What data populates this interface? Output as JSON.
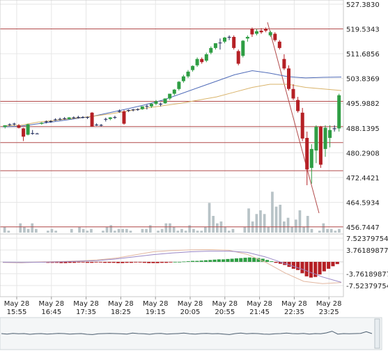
{
  "chart_data": {
    "type": "candlestick",
    "panels": {
      "price": {
        "y_ticks": [
          "527.3830",
          "519.5343",
          "511.6856",
          "503.8369",
          "495.9882",
          "488.1395",
          "480.2908",
          "472.4421",
          "464.5934",
          "456.7447"
        ],
        "ylim": [
          456.7447,
          527.383
        ],
        "horizontal_levels": [
          519.5343,
          496.6,
          488.6,
          483.5,
          474.6,
          456.8
        ],
        "candles": [
          [
            488.5,
            489.0,
            488.0,
            489.0
          ],
          [
            489.2,
            489.6,
            488.8,
            489.3
          ],
          [
            489.3,
            489.8,
            488.9,
            489.5
          ],
          [
            489.0,
            489.4,
            488.0,
            488.2
          ],
          [
            488.0,
            488.2,
            484.0,
            485.4
          ],
          [
            486.0,
            489.5,
            485.8,
            489.3
          ],
          [
            486.5,
            487.5,
            486.0,
            486.4
          ],
          [
            486.4,
            486.6,
            486.2,
            486.4
          ],
          [
            489.5,
            490.0,
            489.2,
            489.8
          ],
          [
            490.0,
            490.5,
            489.6,
            490.2
          ],
          [
            490.2,
            490.6,
            489.8,
            490.3
          ],
          [
            490.8,
            491.2,
            490.4,
            490.8
          ],
          [
            491.0,
            491.4,
            490.6,
            491.0
          ],
          [
            491.2,
            491.6,
            490.8,
            491.2
          ],
          [
            491.0,
            491.6,
            490.8,
            491.5
          ],
          [
            491.5,
            491.8,
            491.1,
            491.3
          ],
          [
            491.6,
            492.0,
            491.2,
            491.6
          ],
          [
            491.6,
            491.9,
            491.2,
            491.4
          ],
          [
            491.4,
            491.8,
            491.0,
            491.6
          ],
          [
            493.0,
            493.2,
            488.5,
            488.6
          ],
          [
            489.2,
            489.6,
            488.8,
            489.0
          ],
          [
            489.0,
            489.4,
            488.6,
            489.1
          ],
          [
            490.8,
            491.4,
            490.2,
            491.0
          ],
          [
            491.0,
            491.6,
            490.6,
            491.5
          ],
          [
            491.5,
            492.0,
            491.0,
            491.6
          ],
          [
            493.5,
            494.0,
            493.0,
            493.4
          ],
          [
            493.4,
            493.8,
            489.2,
            489.5
          ],
          [
            493.6,
            494.0,
            493.2,
            493.8
          ],
          [
            493.8,
            494.2,
            493.4,
            494.0
          ],
          [
            494.0,
            494.4,
            493.6,
            494.1
          ],
          [
            494.1,
            494.6,
            493.9,
            495.0
          ],
          [
            495.0,
            495.5,
            494.0,
            495.1
          ],
          [
            495.0,
            496.0,
            494.5,
            495.8
          ],
          [
            495.8,
            497.0,
            495.4,
            496.6
          ],
          [
            495.6,
            496.2,
            495.0,
            495.8
          ],
          [
            496.0,
            497.5,
            495.8,
            497.5
          ],
          [
            497.5,
            499.0,
            497.0,
            499.0
          ],
          [
            499.0,
            500.5,
            498.5,
            500.3
          ],
          [
            500.5,
            503.0,
            500.0,
            502.8
          ],
          [
            503.0,
            505.0,
            502.5,
            504.5
          ],
          [
            504.5,
            506.5,
            504.0,
            506.0
          ],
          [
            506.5,
            508.0,
            506.0,
            507.8
          ],
          [
            508.0,
            510.5,
            507.5,
            510.0
          ],
          [
            510.0,
            510.5,
            508.5,
            509.0
          ],
          [
            509.5,
            512.0,
            509.0,
            511.5
          ],
          [
            512.0,
            514.0,
            511.5,
            513.5
          ],
          [
            513.5,
            515.0,
            513.0,
            515.0
          ],
          [
            515.0,
            516.5,
            513.0,
            515.2
          ],
          [
            515.5,
            517.0,
            515.0,
            516.8
          ],
          [
            516.8,
            517.5,
            516.0,
            517.0
          ],
          [
            517.0,
            517.5,
            513.0,
            513.5
          ],
          [
            512.5,
            513.0,
            508.0,
            508.5
          ],
          [
            511.0,
            516.0,
            510.5,
            515.8
          ],
          [
            516.5,
            517.5,
            515.5,
            517.0
          ],
          [
            519.5,
            520.0,
            517.0,
            517.8
          ],
          [
            518.0,
            519.5,
            517.5,
            518.8
          ],
          [
            519.0,
            519.8,
            518.0,
            518.5
          ],
          [
            519.5,
            520.0,
            518.5,
            519.0
          ],
          [
            517.5,
            519.0,
            517.0,
            518.5
          ],
          [
            518.0,
            518.5,
            515.5,
            516.0
          ],
          [
            515.5,
            516.0,
            513.0,
            513.5
          ],
          [
            510.0,
            511.5,
            506.5,
            507.0
          ],
          [
            507.0,
            508.0,
            500.0,
            500.5
          ],
          [
            500.5,
            502.0,
            497.0,
            497.5
          ],
          [
            497.0,
            498.0,
            493.0,
            493.5
          ],
          [
            493.0,
            494.5,
            484.0,
            484.8
          ],
          [
            485.0,
            487.0,
            470.0,
            475.0
          ],
          [
            475.5,
            483.0,
            470.5,
            481.5
          ],
          [
            481.0,
            489.0,
            477.0,
            488.5
          ],
          [
            488.5,
            488.8,
            475.5,
            476.5
          ],
          [
            481.5,
            489.0,
            479.0,
            488.2
          ],
          [
            485.0,
            489.0,
            482.0,
            487.5
          ],
          [
            488.0,
            489.0,
            487.0,
            488.0
          ],
          [
            488.0,
            499.0,
            487.0,
            498.5
          ]
        ],
        "ma_fast": [
          [
            489.5,
            488.8
          ],
          [
            490.0,
            489.0
          ],
          [
            491.5,
            490.0
          ],
          [
            493.0,
            490.6
          ],
          [
            494.5,
            491.2
          ],
          [
            497.0,
            491.8
          ],
          [
            500.0,
            492.6
          ],
          [
            502.5,
            493.5
          ],
          [
            504.5,
            494.4
          ],
          [
            506.0,
            495.2
          ],
          [
            507.0,
            496.0
          ],
          [
            509.0,
            497.0
          ],
          [
            511.0,
            498.0
          ],
          [
            512.5,
            499.5
          ],
          [
            513.0,
            501.0
          ],
          [
            511.0,
            502.0
          ],
          [
            507.0,
            502.0
          ],
          [
            501.0,
            501.0
          ],
          [
            497.5,
            500.5
          ],
          [
            495.5,
            500.0
          ]
        ],
        "ma_slow": [
          [
            489.0,
            488.5
          ],
          [
            489.5,
            488.7
          ],
          [
            490.0,
            489.5
          ],
          [
            490.8,
            490.2
          ],
          [
            491.5,
            491.0
          ],
          [
            492.0,
            491.8
          ],
          [
            492.5,
            493.0
          ],
          [
            493.0,
            494.2
          ],
          [
            493.4,
            495.5
          ],
          [
            493.8,
            497.0
          ],
          [
            494.2,
            499.0
          ],
          [
            494.8,
            501.0
          ],
          [
            495.5,
            503.0
          ],
          [
            496.5,
            505.0
          ],
          [
            497.0,
            506.3
          ],
          [
            497.0,
            505.5
          ],
          [
            497.2,
            504.4
          ],
          [
            497.4,
            504.0
          ],
          [
            497.5,
            504.2
          ],
          [
            497.6,
            504.3
          ]
        ],
        "volume": [
          3,
          1,
          0,
          0,
          5,
          3,
          2,
          5,
          2,
          0,
          0,
          1,
          2,
          1,
          0,
          0,
          0,
          2,
          0,
          3,
          2,
          1,
          2,
          0,
          0,
          1,
          3,
          4,
          1,
          2,
          2,
          2,
          1,
          0,
          0,
          2,
          2,
          4,
          0,
          1,
          2,
          5,
          5,
          3,
          1,
          2,
          1,
          4,
          2,
          1,
          1,
          3,
          16,
          9,
          5,
          6,
          3,
          1,
          2,
          0,
          0,
          3,
          13,
          6,
          10,
          12,
          10,
          3,
          22,
          14,
          15,
          6,
          8,
          3,
          7,
          12,
          3,
          9,
          2,
          0,
          1,
          5,
          2,
          2,
          1,
          2
        ]
      },
      "macd": {
        "y_ticks": [
          "7.52379754",
          "3.76189877",
          "-3.76189877",
          "-7.52379754"
        ],
        "ylim": [
          -7.52379754,
          7.52379754
        ],
        "histogram": [
          -0.2,
          -0.3,
          -0.3,
          -0.3,
          -0.4,
          -0.4,
          -0.3,
          -0.3,
          -0.2,
          -0.2,
          -0.3,
          -0.3,
          -0.2,
          -0.2,
          -0.3,
          -0.3,
          -0.3,
          -0.4,
          -0.4,
          -0.3,
          -0.3,
          -0.2,
          -0.2,
          -0.3,
          -0.4,
          -0.4,
          -0.4,
          -0.3,
          -0.3,
          -0.2,
          0.0,
          0.0,
          0.1,
          0.2,
          0.3,
          0.3,
          0.4,
          0.5,
          0.6,
          0.7,
          0.8,
          0.8,
          0.9,
          1.0,
          1.1,
          1.2,
          1.3,
          1.4,
          1.3,
          1.2,
          1.0,
          0.6,
          0.2,
          -0.3,
          -0.6,
          -1.0,
          -1.6,
          -2.2,
          -2.6,
          -3.6,
          -4.6,
          -5.0,
          -4.8,
          -4.0,
          -3.0,
          -2.2,
          -1.4,
          -0.7
        ],
        "macd_line": [
          -0.2,
          -0.3,
          0.0,
          0.1,
          0.3,
          0.6,
          1.2,
          2.2,
          3.2,
          3.6,
          3.8,
          3.9,
          3.7,
          2.4,
          -0.2,
          -3.5,
          -6.2,
          -6.9,
          -6.6
        ],
        "signal_line": [
          -0.1,
          -0.2,
          -0.1,
          0.0,
          0.2,
          0.4,
          0.9,
          1.6,
          2.3,
          2.8,
          3.2,
          3.4,
          3.4,
          3.0,
          1.5,
          -0.5,
          -2.5,
          -4.8,
          -6.5
        ]
      }
    },
    "time_labels": [
      {
        "date": "May 28",
        "time": "15:55"
      },
      {
        "date": "May 28",
        "time": "16:45"
      },
      {
        "date": "May 28",
        "time": "17:35"
      },
      {
        "date": "May 28",
        "time": "18:25"
      },
      {
        "date": "May 28",
        "time": "19:15"
      },
      {
        "date": "May 28",
        "time": "20:05"
      },
      {
        "date": "May 28",
        "time": "20:55"
      },
      {
        "date": "May 28",
        "time": "21:45"
      },
      {
        "date": "May 28",
        "time": "22:35"
      },
      {
        "date": "May 28",
        "time": "23:25"
      }
    ],
    "navigator": {
      "values": [
        50,
        48,
        51,
        49,
        50,
        47,
        49,
        50,
        48,
        49,
        51,
        50,
        48,
        49,
        50,
        47,
        46,
        49,
        50,
        51,
        50,
        49,
        48,
        52,
        50,
        49,
        47,
        50,
        51,
        48,
        49,
        50,
        52,
        49,
        48,
        50,
        51,
        49,
        50,
        48,
        46,
        50,
        52,
        49,
        51,
        50,
        48,
        47,
        49,
        50,
        52,
        50,
        49,
        51,
        48,
        50,
        49,
        53,
        60,
        48,
        50,
        49,
        50,
        51,
        58,
        50
      ],
      "ylim": [
        0,
        100
      ]
    },
    "colors": {
      "up": "#2f9e44",
      "down": "#b52025",
      "doji": "#1e2a5a",
      "ma_fast": "#d9b36a",
      "ma_slow": "#4f6bb8",
      "volume": "#b8c3c7",
      "level": "#b24a4a",
      "grid": "#e6e6e6",
      "macd_line": "#e2b7a0",
      "signal_line": "#9a88c7",
      "hist_pos": "#2f9e44",
      "hist_neg": "#b52025",
      "navigator": "#4a5c6e"
    }
  }
}
